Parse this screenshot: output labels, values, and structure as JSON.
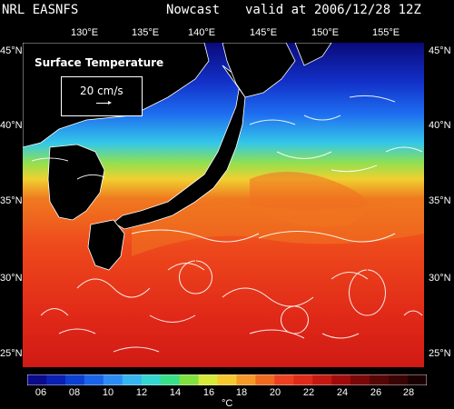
{
  "header": {
    "model": "NRL EASNFS",
    "product": "Nowcast",
    "valid": "valid at 2006/12/28 12Z"
  },
  "map": {
    "layer_title": "Surface Temperature",
    "vector_scale_label": "20 cm/s",
    "lon_labels": [
      "130°E",
      "135°E",
      "140°E",
      "145°E",
      "150°E",
      "155°E"
    ],
    "lat_labels_left": [
      "45°N",
      "40°N",
      "35°N",
      "30°N",
      "25°N"
    ],
    "lat_labels_right": [
      "45°N",
      "40°N",
      "35°N",
      "30°N",
      "25°N"
    ]
  },
  "colorbar": {
    "tick_labels": [
      "06",
      "08",
      "10",
      "12",
      "14",
      "16",
      "18",
      "20",
      "22",
      "24",
      "26",
      "28"
    ],
    "unit": "°C",
    "colors": [
      "#0a0a8a",
      "#0b1fb0",
      "#0d3fd0",
      "#1a64e8",
      "#2c8cf4",
      "#36b5f0",
      "#35d6d0",
      "#3adf8a",
      "#80e040",
      "#d6e83a",
      "#f5c830",
      "#f59a28",
      "#f06a20",
      "#ec4020",
      "#e02a18",
      "#c41810",
      "#a00c0c",
      "#7a0808",
      "#560606",
      "#3a0404",
      "#1a0000"
    ]
  }
}
